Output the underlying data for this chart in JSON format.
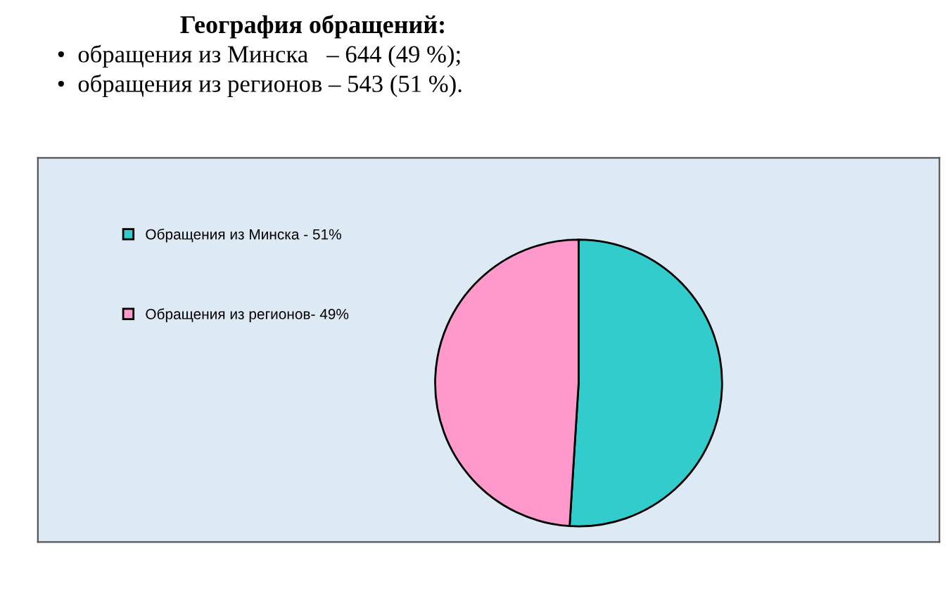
{
  "chart_data": {
    "type": "pie",
    "title": "География обращений:",
    "annotations": [
      "•  обращения из Минска   – 644 (49 %);",
      "•  обращения из регионов – 543 (51 %)."
    ],
    "categories": [
      "Обращения из Минска - 51%",
      "Обращения из регионов- 49%"
    ],
    "values": [
      51,
      49
    ],
    "colors": [
      "#33cccc",
      "#ff99cc"
    ],
    "legend": "top left"
  }
}
